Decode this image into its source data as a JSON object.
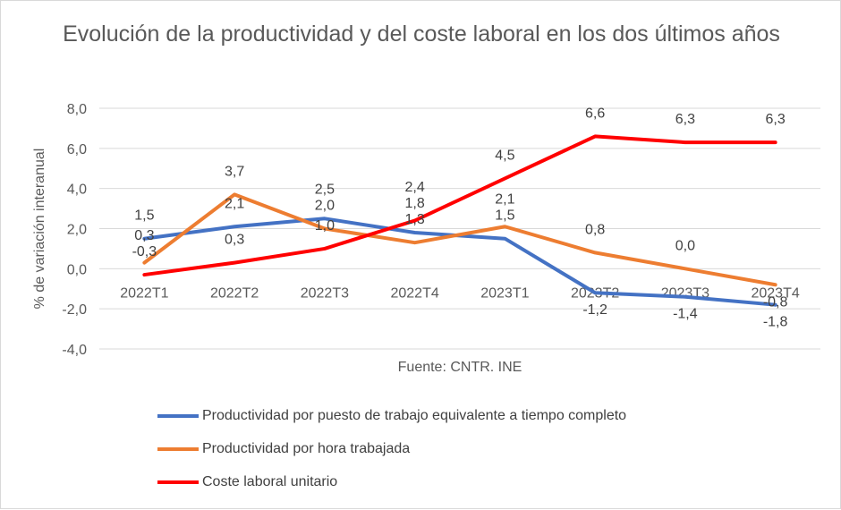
{
  "chart_data": {
    "type": "line",
    "title": "Evolución de la productividad y del coste laboral en los dos últimos años",
    "ylabel": "% de variación interanual",
    "xlabel": "Fuente: CNTR. INE",
    "ylim": [
      -4,
      8
    ],
    "yticks": [
      "8,0",
      "6,0",
      "4,0",
      "2,0",
      "0,0",
      "-2,0",
      "-4,0"
    ],
    "ytick_values": [
      8,
      6,
      4,
      2,
      0,
      -2,
      -4
    ],
    "grid": true,
    "legend_position": "bottom",
    "categories": [
      "2022T1",
      "2022T2",
      "2022T3",
      "2022T4",
      "2023T1",
      "2023T2",
      "2023T3",
      "2023T4"
    ],
    "series": [
      {
        "name": "Productividad por puesto de trabajo equivalente a tiempo completo",
        "color": "#4472c4",
        "values": [
          1.5,
          2.1,
          2.5,
          1.8,
          1.5,
          -1.2,
          -1.4,
          -1.8
        ],
        "labels": [
          "1,5",
          "2,1",
          "2,5",
          "1,8",
          "1,5",
          "-1,2",
          "-1,4",
          "-1,8"
        ]
      },
      {
        "name": "Productividad por hora trabajada",
        "color": "#ed7d31",
        "values": [
          0.3,
          3.7,
          2.0,
          1.3,
          2.1,
          0.8,
          0.0,
          -0.8
        ],
        "labels": [
          "0,3",
          "3,7",
          "2,0",
          "1,3",
          "2,1",
          "0,8",
          "0,0",
          "-0,8"
        ]
      },
      {
        "name": "Coste laboral unitario",
        "color": "#ff0000",
        "values": [
          -0.3,
          0.3,
          1.0,
          2.4,
          4.5,
          6.6,
          6.3,
          6.3
        ],
        "labels": [
          "-0,3",
          "0,3",
          "1,0",
          "2,4",
          "4,5",
          "6,6",
          "6,3",
          "6,3"
        ]
      }
    ]
  }
}
